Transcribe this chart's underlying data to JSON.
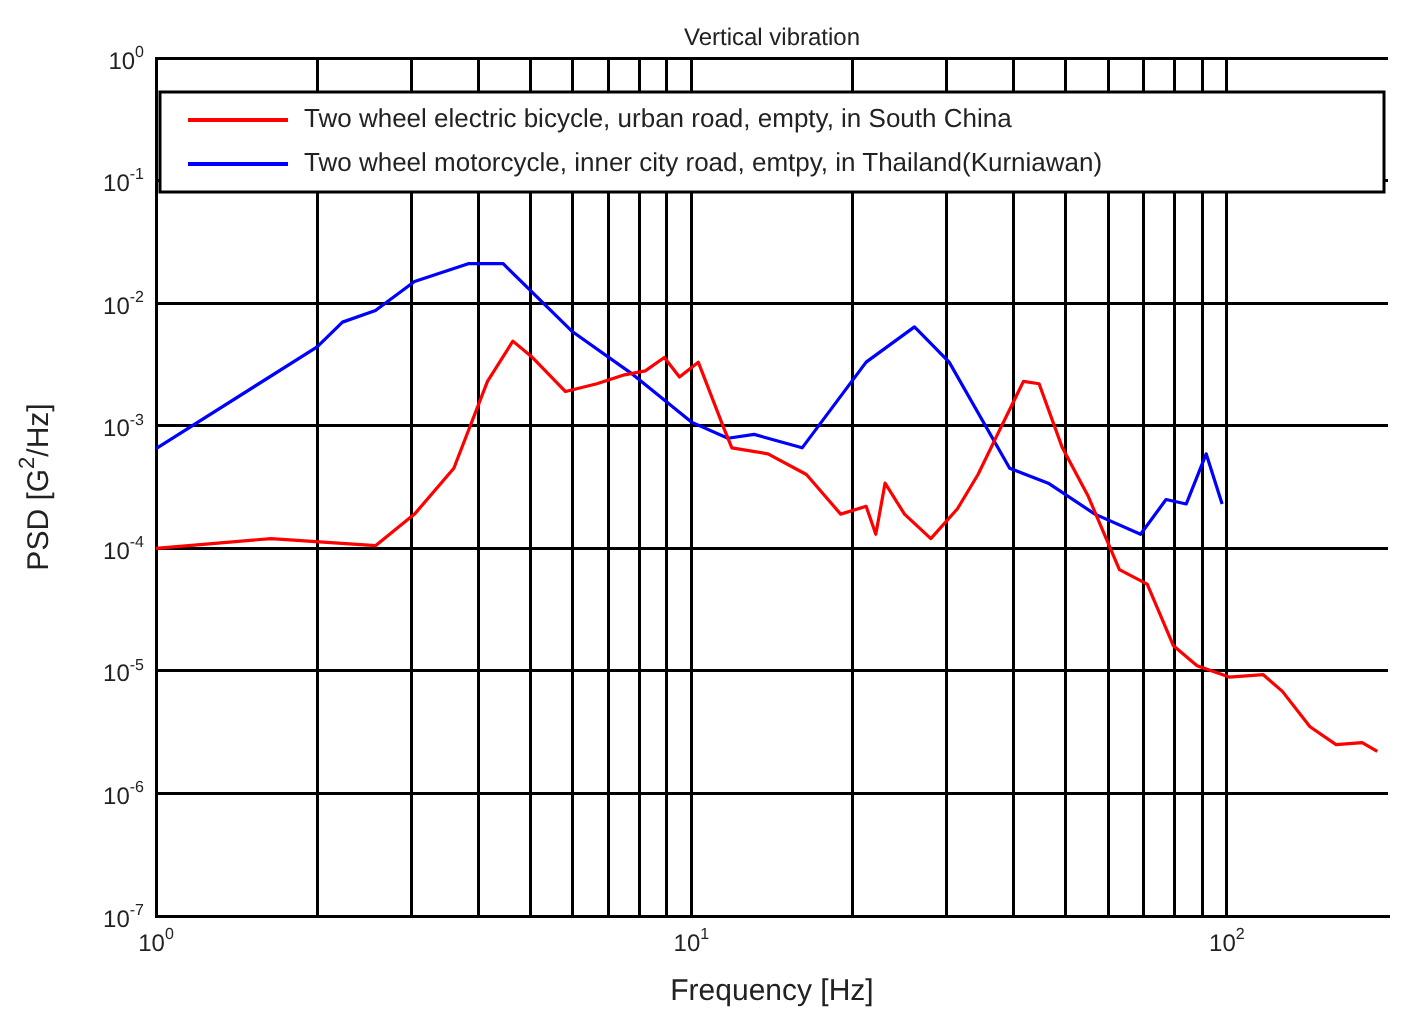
{
  "chart_data": {
    "type": "line",
    "title": "Vertical vibration",
    "xlabel": "Frequency [Hz]",
    "ylabel": "PSD [G$^{2}$/Hz]",
    "log": "xy",
    "grid": true,
    "legend": "top",
    "marker": "none",
    "line_style": "solid",
    "xlim": [
      1,
      200
    ],
    "xticks": [
      {
        "value": 1,
        "label": "10$^{0}$"
      },
      {
        "value": 2,
        "label": null
      },
      {
        "value": 3,
        "label": null
      },
      {
        "value": 4,
        "label": null
      },
      {
        "value": 5,
        "label": null
      },
      {
        "value": 6,
        "label": null
      },
      {
        "value": 7,
        "label": null
      },
      {
        "value": 8,
        "label": null
      },
      {
        "value": 9,
        "label": null
      },
      {
        "value": 10,
        "label": "10$^{1}$"
      },
      {
        "value": 20,
        "label": null
      },
      {
        "value": 30,
        "label": null
      },
      {
        "value": 40,
        "label": null
      },
      {
        "value": 50,
        "label": null
      },
      {
        "value": 60,
        "label": null
      },
      {
        "value": 70,
        "label": null
      },
      {
        "value": 80,
        "label": null
      },
      {
        "value": 90,
        "label": null
      },
      {
        "value": 100,
        "label": "10$^{2}$"
      }
    ],
    "ylim": [
      1e-07,
      1
    ],
    "yticks": [
      {
        "value": 1e-07,
        "label": "10$^{-7}$"
      },
      {
        "value": 1e-06,
        "label": "10$^{-6}$"
      },
      {
        "value": 1e-05,
        "label": "10$^{-5}$"
      },
      {
        "value": 0.0001,
        "label": "10$^{-4}$"
      },
      {
        "value": 0.001,
        "label": "10$^{-3}$"
      },
      {
        "value": 0.01,
        "label": "10$^{-2}$"
      },
      {
        "value": 0.1,
        "label": "10$^{-1}$"
      },
      {
        "value": 1,
        "label": "10$^{0}$"
      }
    ],
    "series": [
      {
        "name": "Two wheel electric bicycle, urban road, empty, in South China",
        "color": "#ff0000",
        "x": [
          1,
          1.64,
          2.57,
          3.04,
          3.6,
          4.16,
          4.64,
          5.05,
          5.82,
          6.66,
          7.5,
          8.2,
          8.9,
          9.5,
          10.3,
          11.5,
          11.9,
          13.9,
          16.4,
          19,
          21.2,
          22.1,
          23,
          25,
          28,
          31.4,
          34.3,
          37.3,
          41.7,
          44.6,
          49.3,
          55,
          63,
          71,
          79.5,
          88,
          101,
          117,
          127,
          143,
          160,
          179,
          191
        ],
        "values": [
          0.0001,
          0.00012,
          0.000105,
          0.00019,
          0.00045,
          0.0023,
          0.0049,
          0.0036,
          0.0019,
          0.0022,
          0.0026,
          0.0028,
          0.0036,
          0.0025,
          0.0033,
          0.00095,
          0.00066,
          0.00059,
          0.0004,
          0.00019,
          0.00022,
          0.00013,
          0.00034,
          0.00019,
          0.00012,
          0.00021,
          0.0004,
          0.00085,
          0.0023,
          0.0022,
          0.00066,
          0.00027,
          6.7e-05,
          5.1e-05,
          1.6e-05,
          1.1e-05,
          8.9e-06,
          9.3e-06,
          6.8e-06,
          3.5e-06,
          2.5e-06,
          2.6e-06,
          2.2e-06
        ]
      },
      {
        "name": "Two wheel motorcycle, inner city road, emtpy, in Thailand(Kurniawan)",
        "color": "#0000ff",
        "x": [
          1,
          2,
          2.23,
          2.57,
          3.04,
          3.83,
          4.45,
          5.98,
          7.7,
          10,
          11.7,
          13.1,
          16.1,
          21.2,
          26.1,
          30.3,
          39.3,
          46.4,
          56.7,
          69,
          77,
          84,
          91.5,
          98
        ],
        "values": [
          0.00065,
          0.0044,
          0.007,
          0.0087,
          0.015,
          0.021,
          0.021,
          0.0059,
          0.0027,
          0.00107,
          0.00079,
          0.00085,
          0.00066,
          0.0033,
          0.0064,
          0.0033,
          0.00045,
          0.00034,
          0.00019,
          0.00013,
          0.00025,
          0.00023,
          0.00059,
          0.00023
        ]
      }
    ]
  }
}
